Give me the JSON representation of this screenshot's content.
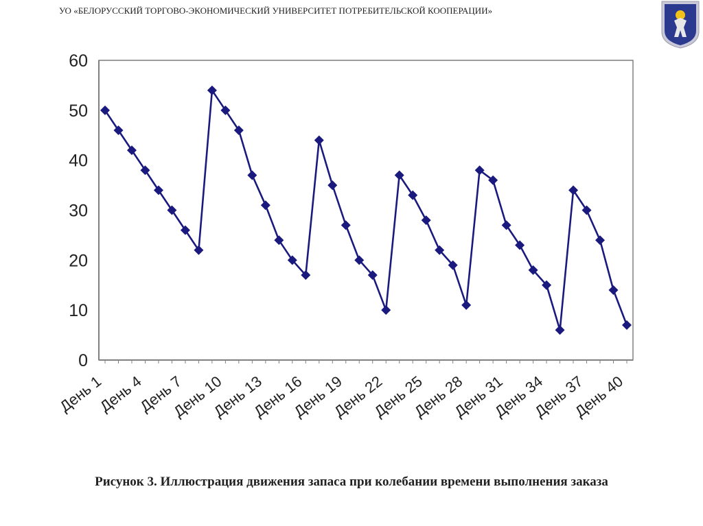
{
  "header": {
    "organization": "УО «БЕЛОРУССКИЙ ТОРГОВО-ЭКОНОМИЧЕСКИЙ УНИВЕРСИТЕТ ПОТРЕБИТЕЛЬСКОЙ КООПЕРАЦИИ»"
  },
  "emblem": {
    "icon": "university-coat-of-arms-icon",
    "colors": {
      "shield": "#2b3a8f",
      "border": "#c8c8d8",
      "sun": "#f2c21b",
      "figure": "#e8e8e8"
    }
  },
  "caption": {
    "text": "Рисунок 3. Иллюстрация движения запаса при колебании времени выполнения заказа"
  },
  "chart_data": {
    "type": "line",
    "title": "",
    "xlabel": "",
    "ylabel": "",
    "categories": [
      "День 1",
      "День 2",
      "День 3",
      "День 4",
      "День 5",
      "День 6",
      "День 7",
      "День 8",
      "День 9",
      "День 10",
      "День 11",
      "День 12",
      "День 13",
      "День 14",
      "День 15",
      "День 16",
      "День 17",
      "День 18",
      "День 19",
      "День 20",
      "День 21",
      "День 22",
      "День 23",
      "День 24",
      "День 25",
      "День 26",
      "День 27",
      "День 28",
      "День 29",
      "День 30",
      "День 31",
      "День 32",
      "День 33",
      "День 34",
      "День 35",
      "День 36",
      "День 37",
      "День 38",
      "День 39",
      "День 40"
    ],
    "tick_labels": [
      "День 1",
      "День 4",
      "День 7",
      "День 10",
      "День 13",
      "День 16",
      "День 19",
      "День 22",
      "День 25",
      "День 28",
      "День 31",
      "День 34",
      "День 37",
      "День 40"
    ],
    "series": [
      {
        "values": [
          50,
          46,
          42,
          38,
          34,
          30,
          26,
          22,
          54,
          50,
          46,
          37,
          31,
          24,
          20,
          17,
          44,
          35,
          27,
          20,
          17,
          10,
          37,
          33,
          28,
          22,
          19,
          11,
          38,
          36,
          27,
          23,
          18,
          15,
          6,
          34,
          30,
          24,
          14,
          7
        ],
        "color": "#1a1a7e",
        "marker": "diamond"
      }
    ],
    "ylim": [
      0,
      60
    ],
    "yticks": [
      0,
      10,
      20,
      30,
      40,
      50,
      60
    ],
    "grid": true,
    "legend": "none"
  }
}
